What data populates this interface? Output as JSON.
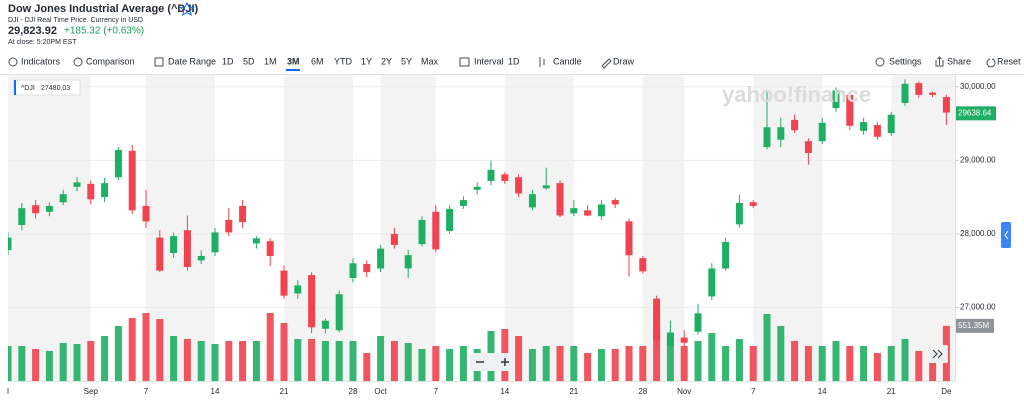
{
  "header": {
    "title": "Dow Jones Industrial Average (^DJI)",
    "subtitle": "DJI - DJI Real Time Price. Currency in USD",
    "price": "29,823.92",
    "change": "+185.32 (+0.63%)",
    "close_note": "At close: 5:20PM EST"
  },
  "toolbar": {
    "indicators": "Indicators",
    "comparison": "Comparison",
    "date_range": "Date Range",
    "ranges": [
      "1D",
      "5D",
      "1M",
      "3M",
      "6M",
      "YTD",
      "1Y",
      "2Y",
      "5Y",
      "Max"
    ],
    "interval_label": "Interval",
    "interval": "1D",
    "chart_type": "Candle",
    "draw": "Draw",
    "settings": "Settings",
    "share": "Share",
    "reset": "Reset"
  },
  "chart_data": {
    "type": "candlestick",
    "watermark": "yahoo!finance",
    "legend": {
      "symbol": "^DJI",
      "value": 27480.03
    },
    "last_price": 29638.64,
    "volume_label": {
      "value": 551.35,
      "label": "551.35M"
    },
    "up_color": "#1fae64",
    "down_color": "#f0424f",
    "grid": true,
    "ylim": [
      26000,
      30160
    ],
    "yticks": [
      {
        "value": 27000,
        "label": "27,000.00"
      },
      {
        "value": 28000,
        "label": "28,000.00"
      },
      {
        "value": 29000,
        "label": "29,000.00"
      },
      {
        "value": 30000,
        "label": "30,000.00"
      }
    ],
    "volume_lim": [
      0,
      800
    ],
    "categories": [
      "l",
      null,
      null,
      null,
      null,
      null,
      "Sep",
      null,
      null,
      null,
      "7",
      null,
      null,
      null,
      null,
      "14",
      null,
      null,
      null,
      null,
      "21",
      null,
      null,
      null,
      null,
      "28",
      null,
      "Oct",
      null,
      null,
      null,
      "7",
      null,
      null,
      null,
      null,
      "14",
      null,
      null,
      null,
      null,
      "21",
      null,
      null,
      null,
      null,
      "28",
      null,
      null,
      "Nov",
      null,
      null,
      null,
      null,
      "7",
      null,
      null,
      null,
      null,
      "14",
      null,
      null,
      null,
      null,
      "21",
      null,
      null,
      null,
      "De"
    ],
    "open": [
      27780,
      28120,
      28390,
      28300,
      28430,
      28640,
      28680,
      28500,
      28770,
      29130,
      28380,
      27950,
      27740,
      28050,
      27640,
      27750,
      28190,
      28380,
      27870,
      27900,
      27500,
      27190,
      27440,
      26710,
      26690,
      27400,
      27590,
      27530,
      28000,
      27530,
      27860,
      28300,
      28040,
      28380,
      28600,
      28720,
      28810,
      28770,
      28360,
      28620,
      28690,
      28280,
      28320,
      28240,
      28460,
      28170,
      27670,
      27120,
      26480,
      26590,
      26670,
      27150,
      27530,
      28130,
      28430,
      29180,
      29280,
      29550,
      29260,
      29260,
      29710,
      29890,
      29400,
      29480,
      29370,
      29780,
      30050,
      29920,
      29860
    ],
    "high": [
      28020,
      28420,
      28460,
      28430,
      28600,
      28770,
      28730,
      28760,
      29180,
      29210,
      28600,
      28050,
      28020,
      28250,
      27780,
      28080,
      28350,
      28460,
      27970,
      27940,
      27570,
      27370,
      27480,
      26850,
      27230,
      27670,
      27640,
      27850,
      28080,
      27780,
      28240,
      28390,
      28390,
      28510,
      28700,
      29000,
      28840,
      28810,
      28600,
      28900,
      28730,
      28460,
      28390,
      28460,
      28490,
      28210,
      27700,
      27160,
      26820,
      26690,
      27050,
      27600,
      27950,
      28530,
      28460,
      29960,
      29580,
      29620,
      29300,
      29580,
      29990,
      29920,
      29580,
      29520,
      29660,
      30100,
      30070,
      29930,
      29890
    ],
    "low": [
      27710,
      28050,
      28210,
      28240,
      28390,
      28580,
      28400,
      28430,
      28730,
      28270,
      28080,
      27480,
      27670,
      27500,
      27590,
      27700,
      27970,
      28080,
      27800,
      27560,
      27120,
      27120,
      26650,
      26650,
      26660,
      27340,
      27410,
      27480,
      27800,
      27400,
      27830,
      27750,
      28000,
      28340,
      28540,
      28660,
      28680,
      28500,
      28320,
      28600,
      28230,
      28240,
      28240,
      28190,
      28350,
      27420,
      27460,
      26480,
      26440,
      26470,
      26630,
      27100,
      27500,
      28080,
      28350,
      29150,
      29180,
      29370,
      28940,
      29220,
      29660,
      29410,
      29350,
      29280,
      29330,
      29740,
      29850,
      29860,
      29480
    ],
    "close": [
      27950,
      28350,
      28280,
      28380,
      28540,
      28700,
      28470,
      28690,
      29140,
      28320,
      28170,
      27500,
      27970,
      27550,
      27700,
      28020,
      28020,
      28160,
      27940,
      27700,
      27160,
      27300,
      26730,
      26820,
      27180,
      27600,
      27480,
      27800,
      27850,
      27710,
      28190,
      27790,
      28340,
      28460,
      28640,
      28870,
      28720,
      28550,
      28540,
      28660,
      28250,
      28350,
      28250,
      28400,
      28400,
      27710,
      27490,
      26550,
      26660,
      26520,
      26920,
      27530,
      27890,
      28420,
      28380,
      29450,
      29450,
      29410,
      29100,
      29510,
      29950,
      29470,
      29520,
      29320,
      29620,
      30040,
      29890,
      29890,
      29650
    ],
    "volume": [
      350,
      350,
      320,
      300,
      380,
      370,
      400,
      450,
      550,
      630,
      680,
      620,
      450,
      420,
      400,
      370,
      400,
      400,
      400,
      680,
      580,
      420,
      420,
      400,
      400,
      400,
      280,
      450,
      400,
      380,
      320,
      350,
      320,
      350,
      320,
      500,
      520,
      450,
      320,
      350,
      350,
      350,
      280,
      320,
      320,
      350,
      350,
      500,
      400,
      350,
      400,
      480,
      350,
      420,
      350,
      670,
      550,
      400,
      350,
      350,
      400,
      350,
      350,
      280,
      350,
      420,
      300,
      200,
      551.35
    ]
  }
}
